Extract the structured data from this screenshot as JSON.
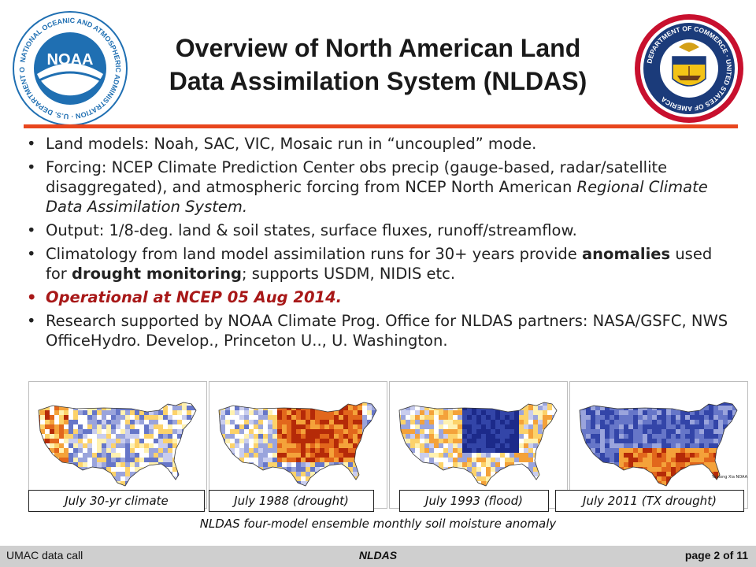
{
  "header": {
    "title_line1": "Overview of North American Land",
    "title_line2": "Data Assimilation System (NLDAS)"
  },
  "logos": [
    {
      "name": "noaa-logo",
      "text": "NOAA",
      "ring_text": "NATIONAL OCEANIC AND ATMOSPHERIC ADMINISTRATION · U.S. DEPARTMENT OF COMMERCE",
      "color": "#1f6fb2"
    },
    {
      "name": "department-of-commerce-seal",
      "ring_text": "DEPARTMENT OF COMMERCE · UNITED STATES OF AMERICA",
      "color": "#1b3b7a"
    }
  ],
  "bullets": [
    {
      "parts": [
        {
          "t": "Land models:  Noah, SAC, VIC, Mosaic run in “uncoupled” mode."
        }
      ]
    },
    {
      "parts": [
        {
          "t": "Forcing:  NCEP Climate Prediction Center obs precip (gauge-based, radar/satellite disaggregated), and atmospheric forcing from NCEP North American "
        },
        {
          "t": "Regional Climate Data Assimilation System.",
          "i": true
        }
      ]
    },
    {
      "parts": [
        {
          "t": "Output: 1/8-deg. land & soil states, surface fluxes, runoff/streamflow."
        }
      ]
    },
    {
      "parts": [
        {
          "t": "Climatology from land model assimilation runs for 30+ years provide "
        },
        {
          "t": "anomalies",
          "b": true
        },
        {
          "t": " used for "
        },
        {
          "t": "drought monitoring",
          "b": true
        },
        {
          "t": "; supports USDM, NIDIS etc."
        }
      ]
    },
    {
      "red": true,
      "parts": [
        {
          "t": "Operational at NCEP 05 Aug 2014."
        }
      ]
    },
    {
      "parts": [
        {
          "t": "Research supported by NOAA Climate Prog. Office for NLDAS partners: NASA/GSFC, NWS OfficeHydro. Develop., Princeton U.., U. Washington."
        }
      ]
    }
  ],
  "maps": [
    {
      "caption": "July 30-yr climate",
      "pattern": "climate"
    },
    {
      "caption": "July 1988 (drought)",
      "pattern": "drought1988"
    },
    {
      "caption": "July 1993 (flood)",
      "pattern": "flood1993"
    },
    {
      "caption": "July 2011 (TX drought)",
      "pattern": "drought2011",
      "credit": "Youlong Xia NOAA/NCEP/EMC"
    }
  ],
  "figure_caption": "NLDAS four-model ensemble monthly soil moisture anomaly",
  "colors": {
    "accent_rule": "#e8461e",
    "highlight_text": "#a81818",
    "wet": "#1c2a8a",
    "dry": "#c62a0a"
  },
  "footer": {
    "left": "UMAC data call",
    "center": "NLDAS",
    "right": "page 2 of 11"
  }
}
